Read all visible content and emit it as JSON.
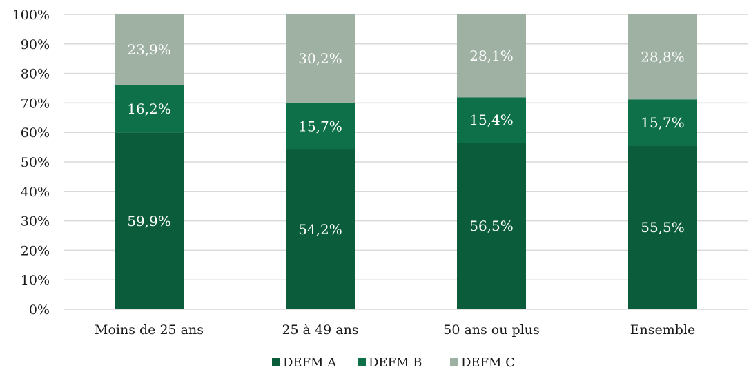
{
  "chart_data": {
    "type": "bar",
    "stacked": true,
    "categories": [
      "Moins de 25 ans",
      "25 à 49 ans",
      "50 ans ou plus",
      "Ensemble"
    ],
    "series": [
      {
        "name": "DEFM A",
        "values": [
          59.9,
          54.2,
          56.5,
          55.5
        ],
        "labels": [
          "59,9%",
          "54,2%",
          "56,5%",
          "55,5%"
        ],
        "color": "#0a5c3a"
      },
      {
        "name": "DEFM B",
        "values": [
          16.2,
          15.7,
          15.4,
          15.7
        ],
        "labels": [
          "16,2%",
          "15,7%",
          "15,4%",
          "15,7%"
        ],
        "color": "#0d7049"
      },
      {
        "name": "DEFM C",
        "values": [
          23.9,
          30.2,
          28.1,
          28.8
        ],
        "labels": [
          "23,9%",
          "30,2%",
          "28,1%",
          "28,8%"
        ],
        "color": "#9fb1a3"
      }
    ],
    "yticks": [
      "0%",
      "10%",
      "20%",
      "30%",
      "40%",
      "50%",
      "60%",
      "70%",
      "80%",
      "90%",
      "100%"
    ],
    "ylim": [
      0,
      100
    ],
    "grid": true,
    "legend_position": "bottom-center",
    "title": "",
    "xlabel": "",
    "ylabel": ""
  }
}
